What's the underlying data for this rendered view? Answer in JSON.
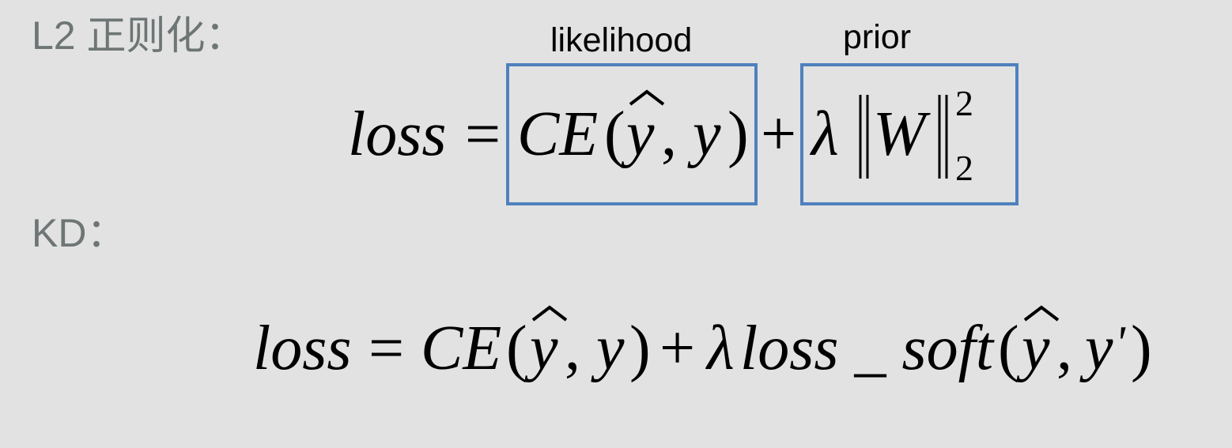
{
  "headings": {
    "l2": "L2 正则化：",
    "kd": "KD："
  },
  "labels": {
    "likelihood": "likelihood",
    "prior": "prior"
  },
  "equation1": {
    "lhs": "loss",
    "equals": "=",
    "ce": "CE",
    "open_paren": "(",
    "yhat": "y",
    "comma": ",",
    "y": "y",
    "close_paren": ")",
    "plus": "+",
    "lambda": "λ",
    "norm_open": "‖",
    "W": "W",
    "norm_close": "‖",
    "sup": "2",
    "sub": "2"
  },
  "equation2": {
    "lhs": "loss",
    "equals": "=",
    "ce": "CE",
    "ce_open": "(",
    "yhat": "y",
    "comma1": ",",
    "y": "y",
    "ce_close": ")",
    "plus": "+",
    "lambda": "λ",
    "loss_soft": "loss _ soft",
    "soft_open": "(",
    "yhat2": "y",
    "comma2": ",",
    "yprime": "y",
    "prime": "'",
    "soft_close": ")"
  }
}
